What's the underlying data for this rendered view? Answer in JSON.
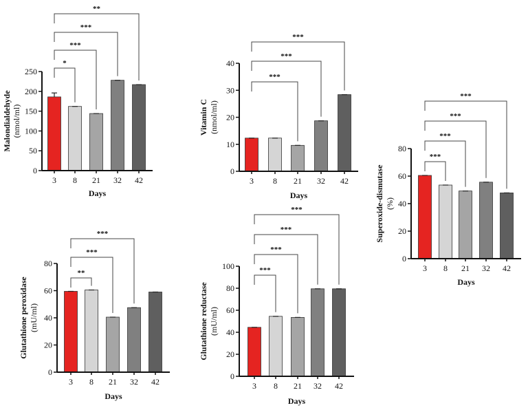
{
  "chart_data": [
    {
      "type": "bar",
      "categories": [
        "3",
        "8",
        "21",
        "32",
        "42"
      ],
      "values": [
        186,
        162,
        144,
        228,
        217
      ],
      "errors": [
        10,
        0,
        0,
        0,
        0
      ],
      "xlabel": "Days",
      "ylabel": "Malondialdehyde",
      "yunit": "(nmol/ml)",
      "ylim": [
        0,
        250
      ],
      "yticks": [
        0,
        50,
        100,
        150,
        200,
        250
      ],
      "comparisons": [
        {
          "from": "3",
          "to": "8",
          "label": "*"
        },
        {
          "from": "3",
          "to": "21",
          "label": "***"
        },
        {
          "from": "3",
          "to": "32",
          "label": "***"
        },
        {
          "from": "3",
          "to": "42",
          "label": "**"
        }
      ]
    },
    {
      "type": "bar",
      "categories": [
        "3",
        "8",
        "21",
        "32",
        "42"
      ],
      "values": [
        12.3,
        12.3,
        9.6,
        18.7,
        28.4
      ],
      "errors": [
        0,
        0,
        0,
        0,
        0
      ],
      "xlabel": "Days",
      "ylabel": "Vitamin C",
      "yunit": "(nmol/ml)",
      "ylim": [
        0,
        40
      ],
      "yticks": [
        0,
        10,
        20,
        30,
        40
      ],
      "comparisons": [
        {
          "from": "3",
          "to": "21",
          "label": "***"
        },
        {
          "from": "3",
          "to": "32",
          "label": "***"
        },
        {
          "from": "3",
          "to": "42",
          "label": "***"
        }
      ]
    },
    {
      "type": "bar",
      "categories": [
        "3",
        "8",
        "21",
        "32",
        "42"
      ],
      "values": [
        60.5,
        53.5,
        49.2,
        55.6,
        47.8
      ],
      "errors": [
        0,
        0,
        0,
        0,
        0
      ],
      "xlabel": "Days",
      "ylabel": "Superoxide-dismutase",
      "yunit": "(%)",
      "ylim": [
        0,
        80
      ],
      "yticks": [
        0,
        20,
        40,
        60,
        80
      ],
      "comparisons": [
        {
          "from": "3",
          "to": "8",
          "label": "***"
        },
        {
          "from": "3",
          "to": "21",
          "label": "***"
        },
        {
          "from": "3",
          "to": "32",
          "label": "***"
        },
        {
          "from": "3",
          "to": "42",
          "label": "***"
        }
      ]
    },
    {
      "type": "bar",
      "categories": [
        "3",
        "8",
        "21",
        "32",
        "42"
      ],
      "values": [
        59.5,
        60.5,
        40.5,
        47.5,
        59
      ],
      "errors": [
        0,
        0,
        0,
        0,
        0
      ],
      "xlabel": "Days",
      "ylabel": "Glutathione peroxidase",
      "yunit": "(mU/ml)",
      "ylim": [
        0,
        80
      ],
      "yticks": [
        0,
        20,
        40,
        60,
        80
      ],
      "comparisons": [
        {
          "from": "3",
          "to": "8",
          "label": "**"
        },
        {
          "from": "3",
          "to": "21",
          "label": "***"
        },
        {
          "from": "3",
          "to": "32",
          "label": "***"
        }
      ]
    },
    {
      "type": "bar",
      "categories": [
        "3",
        "8",
        "21",
        "32",
        "42"
      ],
      "values": [
        44.5,
        54.5,
        53.5,
        79.5,
        79.5
      ],
      "errors": [
        0,
        0,
        0,
        0,
        0
      ],
      "xlabel": "Days",
      "ylabel": "Glutathione reductase",
      "yunit": "(mU/ml)",
      "ylim": [
        0,
        100
      ],
      "yticks": [
        0,
        20,
        40,
        60,
        80,
        100
      ],
      "comparisons": [
        {
          "from": "3",
          "to": "8",
          "label": "***"
        },
        {
          "from": "3",
          "to": "21",
          "label": "***"
        },
        {
          "from": "3",
          "to": "32",
          "label": "***"
        },
        {
          "from": "3",
          "to": "42",
          "label": "***"
        }
      ]
    }
  ],
  "colors": [
    "#e52421",
    "#d5d5d5",
    "#a5a5a5",
    "#808080",
    "#5f5f5f"
  ]
}
